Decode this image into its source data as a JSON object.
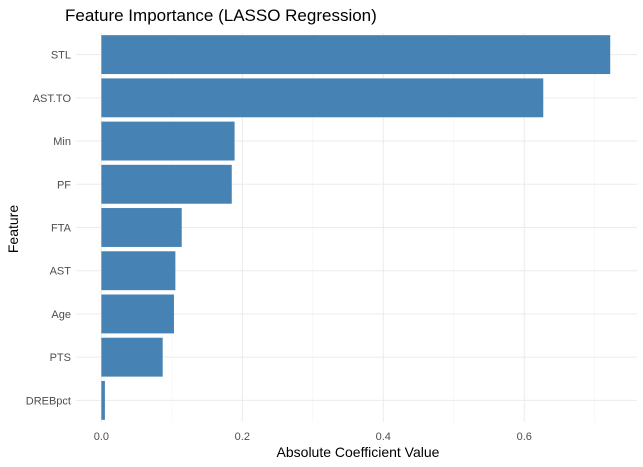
{
  "chart_data": {
    "type": "bar",
    "orientation": "horizontal",
    "title": "Feature Importance (LASSO Regression)",
    "xlabel": "Absolute Coefficient Value",
    "ylabel": "Feature",
    "categories": [
      "STL",
      "AST.TO",
      "Min",
      "PF",
      "FTA",
      "AST",
      "Age",
      "PTS",
      "DREBpct"
    ],
    "values": [
      0.722,
      0.627,
      0.189,
      0.185,
      0.114,
      0.105,
      0.103,
      0.087,
      0.005
    ],
    "xlim": [
      -0.036,
      0.76
    ],
    "xticks": [
      0.0,
      0.2,
      0.4,
      0.6
    ],
    "xtick_labels": [
      "0.0",
      "0.2",
      "0.4",
      "0.6"
    ],
    "grid": true,
    "bar_color": "#4682B4"
  }
}
